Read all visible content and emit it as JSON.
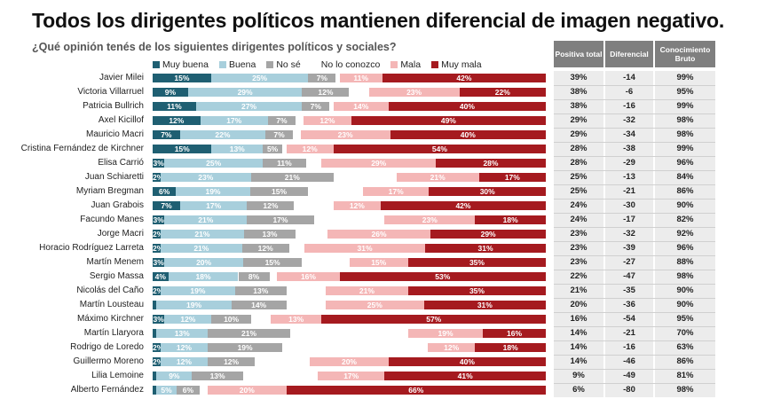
{
  "title": "Todos los dirigentes políticos mantienen diferencial de imagen negativo.",
  "subtitle": "¿Qué opinión tenés de los siguientes dirigentes políticos y sociales?",
  "table_headers": [
    "Positiva total",
    "Diferencial",
    "Conocimiento Bruto"
  ],
  "colors": {
    "muy_buena": "#1f5f72",
    "buena": "#a8cfdc",
    "no_se": "#a5a5a5",
    "no_lo_conozco": "#ffffff",
    "mala": "#f4b6b6",
    "muy_mala": "#a51a1f"
  },
  "chart_data": {
    "type": "bar",
    "orientation": "horizontal",
    "stacked": true,
    "normalized": true,
    "title": "Todos los dirigentes políticos mantienen diferencial de imagen negativo.",
    "subtitle": "¿Qué opinión tenés de los siguientes dirigentes políticos y sociales?",
    "legend_position": "top",
    "categories": [
      "Javier Milei",
      "Victoria Villarruel",
      "Patricia Bullrich",
      "Axel Kicillof",
      "Mauricio Macri",
      "Cristina Fernández de Kirchner",
      "Elisa Carrió",
      "Juan Schiaretti",
      "Myriam Bregman",
      "Juan Grabois",
      "Facundo Manes",
      "Jorge Macri",
      "Horacio Rodríguez Larreta",
      "Martín Menem",
      "Sergio Massa",
      "Nicolás del Caño",
      "Martín Lousteau",
      "Máximo Kirchner",
      "Martín Llaryora",
      "Rodrigo de Loredo",
      "Guillermo Moreno",
      "Lilia Lemoine",
      "Alberto Fernández"
    ],
    "series": [
      {
        "name": "Muy buena",
        "key": "muy_buena",
        "values": [
          15,
          9,
          11,
          12,
          7,
          15,
          3,
          2,
          6,
          7,
          3,
          2,
          2,
          3,
          4,
          2,
          1,
          3,
          1,
          2,
          2,
          1,
          1
        ]
      },
      {
        "name": "Buena",
        "key": "buena",
        "values": [
          25,
          29,
          27,
          17,
          22,
          13,
          25,
          23,
          19,
          17,
          21,
          21,
          21,
          20,
          18,
          19,
          19,
          12,
          13,
          12,
          12,
          9,
          5
        ]
      },
      {
        "name": "No sé",
        "key": "no_se",
        "values": [
          7,
          12,
          7,
          7,
          7,
          5,
          11,
          21,
          15,
          12,
          17,
          13,
          12,
          15,
          8,
          13,
          14,
          10,
          21,
          19,
          12,
          13,
          6
        ]
      },
      {
        "name": "No lo conozco",
        "key": "no_lo_conozco",
        "values": [
          1,
          5,
          1,
          2,
          2,
          1,
          4,
          16,
          14,
          10,
          18,
          8,
          4,
          12,
          2,
          10,
          10,
          5,
          30,
          37,
          14,
          19,
          2
        ]
      },
      {
        "name": "Mala",
        "key": "mala",
        "values": [
          11,
          23,
          14,
          12,
          23,
          12,
          29,
          21,
          17,
          12,
          23,
          26,
          31,
          15,
          16,
          21,
          25,
          13,
          19,
          12,
          20,
          17,
          20
        ]
      },
      {
        "name": "Muy mala",
        "key": "muy_mala",
        "values": [
          42,
          22,
          40,
          49,
          40,
          54,
          28,
          17,
          30,
          42,
          18,
          29,
          31,
          35,
          53,
          35,
          31,
          57,
          16,
          18,
          40,
          41,
          66
        ]
      }
    ],
    "label_threshold": 2,
    "table": {
      "positiva_total": [
        "39%",
        "38%",
        "38%",
        "29%",
        "29%",
        "28%",
        "28%",
        "25%",
        "25%",
        "24%",
        "24%",
        "23%",
        "23%",
        "23%",
        "22%",
        "21%",
        "20%",
        "16%",
        "14%",
        "14%",
        "14%",
        "9%",
        "6%"
      ],
      "diferencial": [
        "-14",
        "-6",
        "-16",
        "-32",
        "-34",
        "-38",
        "-29",
        "-13",
        "-21",
        "-30",
        "-17",
        "-32",
        "-39",
        "-27",
        "-47",
        "-35",
        "-36",
        "-54",
        "-21",
        "-16",
        "-46",
        "-49",
        "-80"
      ],
      "conocimiento_bruto": [
        "99%",
        "95%",
        "99%",
        "98%",
        "98%",
        "99%",
        "96%",
        "84%",
        "86%",
        "90%",
        "82%",
        "92%",
        "96%",
        "88%",
        "98%",
        "90%",
        "90%",
        "95%",
        "70%",
        "63%",
        "86%",
        "81%",
        "98%"
      ]
    }
  }
}
